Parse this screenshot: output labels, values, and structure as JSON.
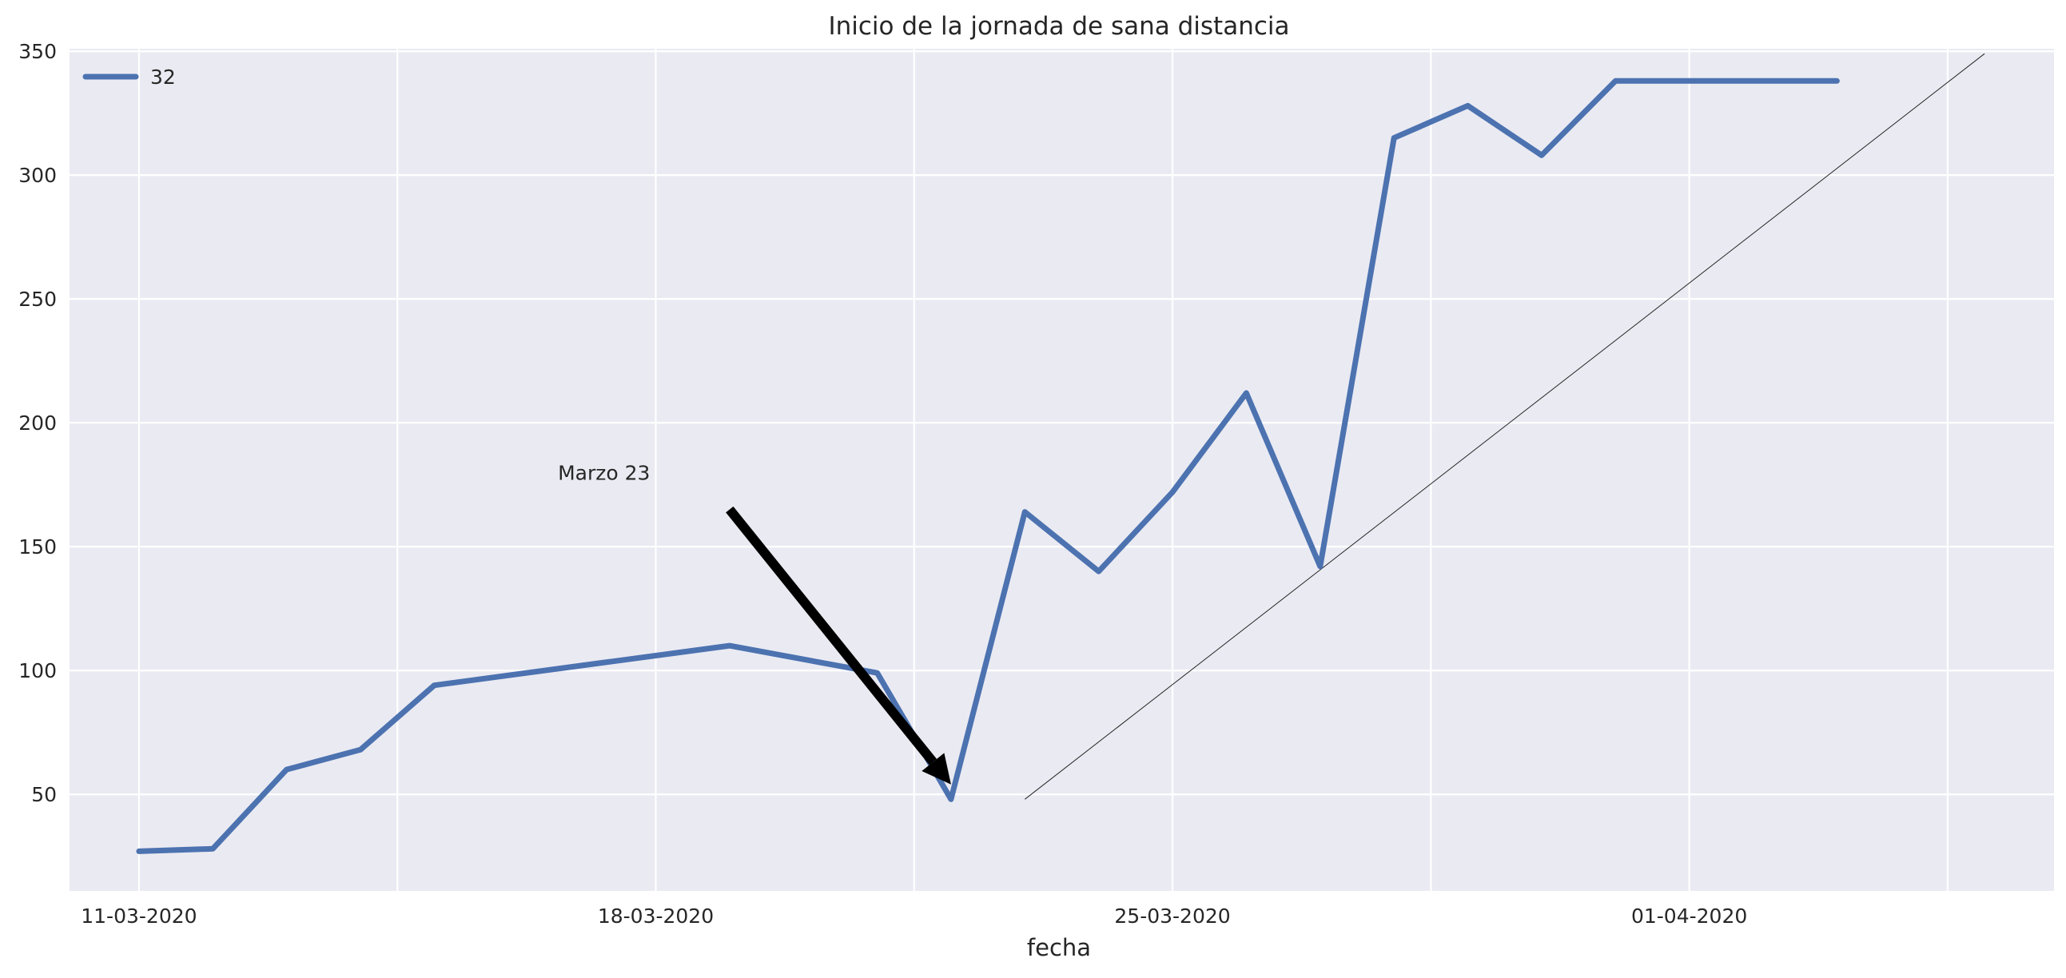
{
  "chart_data": {
    "type": "line",
    "title": "Inicio de la jornada de sana distancia",
    "xlabel": "fecha",
    "ylabel": "",
    "x_ticks": [
      "11-03-2020",
      "18-03-2020",
      "25-03-2020",
      "01-04-2020"
    ],
    "x": [
      "2020-03-11",
      "2020-03-12",
      "2020-03-13",
      "2020-03-14",
      "2020-03-15",
      "2020-03-16",
      "2020-03-17",
      "2020-03-18",
      "2020-03-19",
      "2020-03-20",
      "2020-03-21",
      "2020-03-22",
      "2020-03-23",
      "2020-03-24",
      "2020-03-25",
      "2020-03-26",
      "2020-03-27",
      "2020-03-28",
      "2020-03-29",
      "2020-03-30",
      "2020-03-31",
      "2020-04-01",
      "2020-04-02",
      "2020-04-03",
      "2020-04-04",
      "2020-04-05"
    ],
    "xlim": [
      "2020-03-11",
      "2020-04-05"
    ],
    "y_ticks": [
      50,
      100,
      150,
      200,
      250,
      300,
      350
    ],
    "ylim": [
      11,
      351
    ],
    "series": [
      {
        "name": "32",
        "color": "#4c72b0",
        "x": [
          "2020-03-11",
          "2020-03-12",
          "2020-03-13",
          "2020-03-14",
          "2020-03-15",
          "2020-03-17",
          "2020-03-19",
          "2020-03-21",
          "2020-03-22",
          "2020-03-23",
          "2020-03-24",
          "2020-03-25",
          "2020-03-26",
          "2020-03-27",
          "2020-03-28",
          "2020-03-29",
          "2020-03-30",
          "2020-03-31",
          "2020-04-01",
          "2020-04-02",
          "2020-04-03"
        ],
        "values": [
          27,
          28,
          60,
          68,
          94,
          102,
          110,
          99,
          48,
          164,
          140,
          172,
          212,
          142,
          315,
          328,
          308,
          338,
          338,
          338,
          338
        ]
      }
    ],
    "trend_line": {
      "color": "#262626",
      "from": [
        "2020-03-23",
        48
      ],
      "to": [
        "2020-04-05",
        349
      ]
    },
    "annotation": {
      "text": "Marzo 23",
      "text_at": [
        "2020-03-17",
        177
      ],
      "arrow_from": [
        "2020-03-19",
        165
      ],
      "arrow_to": [
        "2020-03-22",
        54
      ]
    },
    "legend": "top-left",
    "grid": true,
    "background": "#eaeaf2"
  }
}
